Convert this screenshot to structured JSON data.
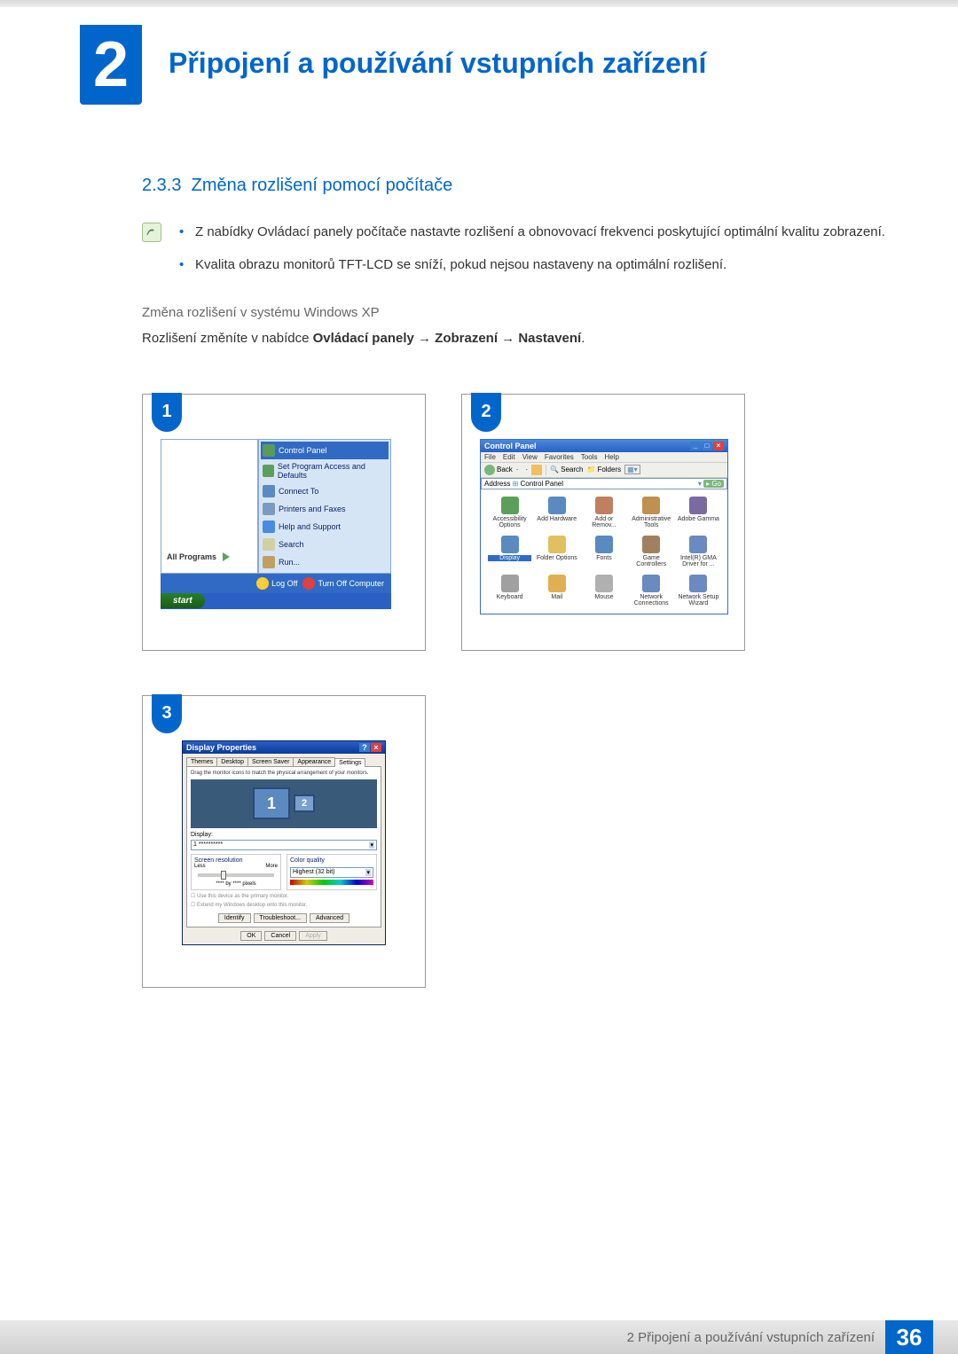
{
  "chapter": {
    "number": "2",
    "title": "Připojení a používání vstupních zařízení"
  },
  "section": {
    "number": "2.3.3",
    "title": "Změna rozlišení pomocí počítače"
  },
  "notes": [
    "Z nabídky Ovládací panely počítače nastavte rozlišení a obnovovací frekvenci poskytující optimální kvalitu zobrazení.",
    "Kvalita obrazu monitorů TFT-LCD se sníží, pokud nejsou nastaveny na optimální rozlišení."
  ],
  "subsection": "Změna rozlišení v systému Windows XP",
  "instruction": {
    "prefix": "Rozlišení změníte v nabídce ",
    "path": "Ovládací panely → Zobrazení → Nastavení",
    "suffix": "."
  },
  "startmenu": {
    "left": "All Programs",
    "right": [
      {
        "label": "Control Panel",
        "sel": true,
        "color": "#5a9a5a"
      },
      {
        "label": "Set Program Access and Defaults",
        "sel": false,
        "color": "#5aa05a"
      },
      {
        "label": "Connect To",
        "sel": false,
        "color": "#5a8ac0"
      },
      {
        "label": "Printers and Faxes",
        "sel": false,
        "color": "#7a9ac0"
      },
      {
        "label": "Help and Support",
        "sel": false,
        "color": "#4a8ae0"
      },
      {
        "label": "Search",
        "sel": false,
        "color": "#d0d0a0"
      },
      {
        "label": "Run...",
        "sel": false,
        "color": "#c0a060"
      }
    ],
    "bottom": [
      {
        "label": "Log Off"
      },
      {
        "label": "Turn Off Computer"
      }
    ],
    "start": "start"
  },
  "controlpanel": {
    "title": "Control Panel",
    "menu": [
      "File",
      "Edit",
      "View",
      "Favorites",
      "Tools",
      "Help"
    ],
    "toolbar": {
      "back": "Back",
      "search": "Search",
      "folders": "Folders"
    },
    "address_label": "Address",
    "address": "Control Panel",
    "go": "Go",
    "items": [
      {
        "label": "Accessibility Options",
        "color": "#5aa05a",
        "sel": false
      },
      {
        "label": "Add Hardware",
        "color": "#5a8ac0",
        "sel": false
      },
      {
        "label": "Add or Remov...",
        "color": "#c08060",
        "sel": false
      },
      {
        "label": "Administrative Tools",
        "color": "#c09050",
        "sel": false
      },
      {
        "label": "Adobe Gamma",
        "color": "#7a6aa0",
        "sel": false
      },
      {
        "label": "Display",
        "color": "#5a8ac0",
        "sel": true
      },
      {
        "label": "Folder Options",
        "color": "#e0c060",
        "sel": false
      },
      {
        "label": "Fonts",
        "color": "#5a8ac0",
        "sel": false
      },
      {
        "label": "Game Controllers",
        "color": "#a08060",
        "sel": false
      },
      {
        "label": "Intel(R) GMA Driver for ...",
        "color": "#6a8ac0",
        "sel": false
      },
      {
        "label": "Keyboard",
        "color": "#a0a0a0",
        "sel": false
      },
      {
        "label": "Mail",
        "color": "#e0b050",
        "sel": false
      },
      {
        "label": "Mouse",
        "color": "#b0b0b0",
        "sel": false
      },
      {
        "label": "Network Connections",
        "color": "#6a8ac0",
        "sel": false
      },
      {
        "label": "Network Setup Wizard",
        "color": "#6a8ac0",
        "sel": false
      }
    ]
  },
  "display": {
    "title": "Display Properties",
    "tabs": [
      "Themes",
      "Desktop",
      "Screen Saver",
      "Appearance",
      "Settings"
    ],
    "active_tab": 4,
    "hint": "Drag the monitor icons to match the physical arrangement of your monitors.",
    "display_label": "Display:",
    "display_value": "1 **********",
    "res_legend": "Screen resolution",
    "res_less": "Less",
    "res_more": "More",
    "res_value": "**** by **** pixels",
    "color_legend": "Color quality",
    "color_value": "Highest (32 bit)",
    "check1": "Use this device as the primary monitor.",
    "check2": "Extend my Windows desktop onto this monitor.",
    "btns_mid": [
      "Identify",
      "Troubleshoot...",
      "Advanced"
    ],
    "btns_bottom": [
      "OK",
      "Cancel",
      "Apply"
    ]
  },
  "footer": {
    "text": "2 Připojení a používání vstupních zařízení",
    "page": "36"
  },
  "colors": {
    "brand": "#0066cc"
  }
}
